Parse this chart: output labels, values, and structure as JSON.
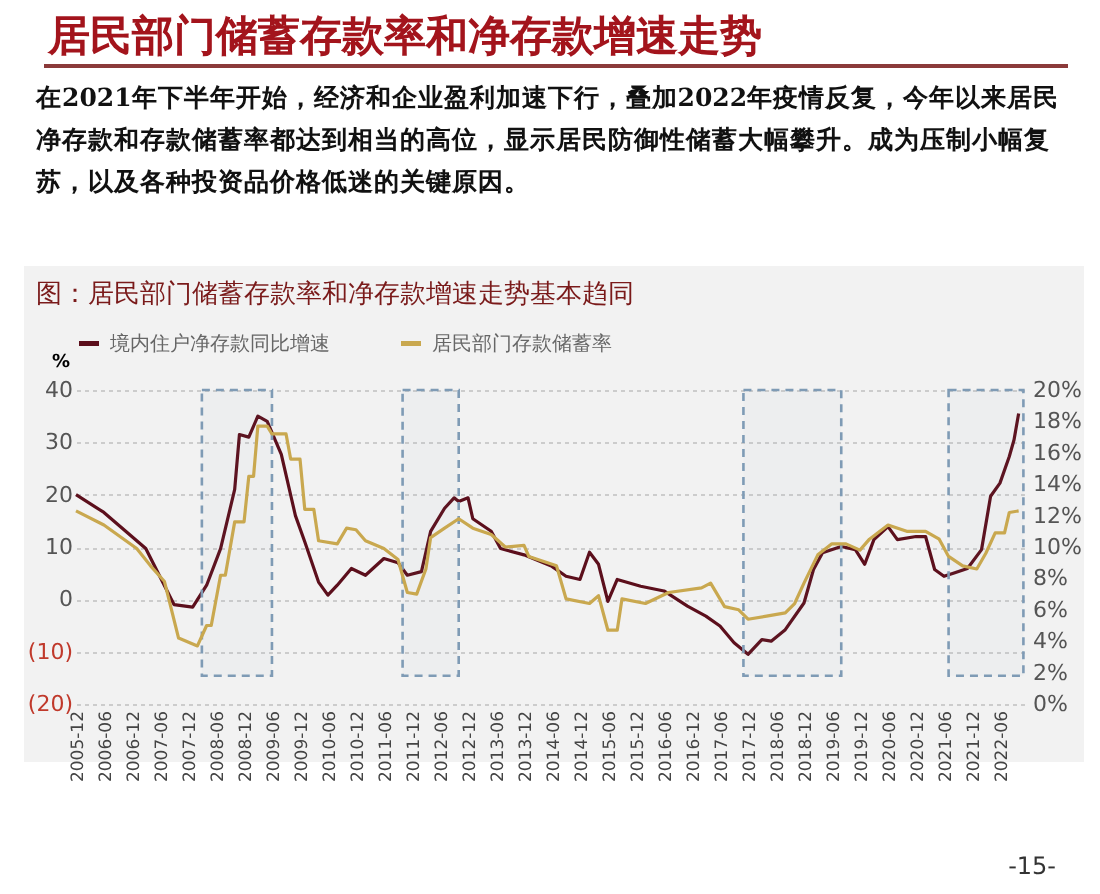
{
  "chart_data": {
    "type": "line",
    "title": "居民部门储蓄存款率和净存款增速走势",
    "subtitle": "在2021年下半年开始，经济和企业盈利加速下行，叠加2022年疫情反复，今年以来居民净存款和存款储蓄率都达到相当的高位，显示居民防御性储蓄大幅攀升。成为压制小幅复苏，以及各种投资品价格低迷的关键原因。",
    "annotations": [
      "图：居民部门储蓄存款率和净存款增速走势基本趋同",
      "-15-"
    ],
    "ylabel": "%",
    "xlim": [
      "2005-12",
      "2022-12"
    ],
    "xticks": [
      "2005-12",
      "2006-06",
      "2006-12",
      "2007-06",
      "2007-12",
      "2008-06",
      "2008-12",
      "2009-06",
      "2009-12",
      "2010-06",
      "2010-12",
      "2011-06",
      "2011-12",
      "2012-06",
      "2012-12",
      "2013-06",
      "2013-12",
      "2014-06",
      "2014-12",
      "2015-06",
      "2015-12",
      "2016-06",
      "2016-12",
      "2017-06",
      "2017-12",
      "2018-06",
      "2018-12",
      "2019-06",
      "2019-12",
      "2020-06",
      "2020-12",
      "2021-06",
      "2021-12",
      "2022-06"
    ],
    "ylim": [
      -20,
      40
    ],
    "yticks": [
      {
        "value": -20,
        "label": "(20)"
      },
      {
        "value": -10,
        "label": "(10)"
      },
      0,
      10,
      20,
      30,
      40
    ],
    "y2lim": [
      0,
      20
    ],
    "y2ticks": [
      {
        "value": 0,
        "label": "0%"
      },
      {
        "value": 2,
        "label": "2%"
      },
      {
        "value": 4,
        "label": "4%"
      },
      {
        "value": 6,
        "label": "6%"
      },
      {
        "value": 8,
        "label": "8%"
      },
      {
        "value": 10,
        "label": "10%"
      },
      {
        "value": 12,
        "label": "12%"
      },
      {
        "value": 14,
        "label": "14%"
      },
      {
        "value": 16,
        "label": "16%"
      },
      {
        "value": 18,
        "label": "18%"
      },
      {
        "value": 20,
        "label": "20%"
      }
    ],
    "grid": "y",
    "legend": "top",
    "bands": [
      {
        "axis": "x",
        "from": "2008-03",
        "to": "2009-06",
        "label": null,
        "color": "#7f9bb5"
      },
      {
        "axis": "x",
        "from": "2011-10",
        "to": "2012-10",
        "label": null,
        "color": "#7f9bb5"
      },
      {
        "axis": "x",
        "from": "2017-11",
        "to": "2019-08",
        "label": null,
        "color": "#7f9bb5"
      },
      {
        "axis": "x",
        "from": "2021-07",
        "to": "2022-11",
        "label": null,
        "color": "#7f9bb5"
      }
    ],
    "series": [
      {
        "name": "境内住户净存款同比增速",
        "color": "#5c0f1c",
        "x": [
          "2005-12",
          "2006-06",
          "2007-03",
          "2007-09",
          "2008-01",
          "2008-04",
          "2008-07",
          "2008-10",
          "2008-11",
          "2009-01",
          "2009-03",
          "2009-05",
          "2009-08",
          "2009-11",
          "2010-01",
          "2010-04",
          "2010-06",
          "2010-08",
          "2010-11",
          "2011-02",
          "2011-06",
          "2011-09",
          "2011-11",
          "2012-02",
          "2012-04",
          "2012-07",
          "2012-09",
          "2012-10",
          "2012-12",
          "2013-01",
          "2013-05",
          "2013-07",
          "2013-12",
          "2014-06",
          "2014-09",
          "2014-12",
          "2015-02",
          "2015-04",
          "2015-06",
          "2015-08",
          "2016-01",
          "2016-06",
          "2016-11",
          "2017-03",
          "2017-06",
          "2017-09",
          "2017-12",
          "2018-03",
          "2018-05",
          "2018-08",
          "2018-12",
          "2019-02",
          "2019-04",
          "2019-08",
          "2019-11",
          "2020-01",
          "2020-03",
          "2020-06",
          "2020-08",
          "2020-12",
          "2021-02",
          "2021-04",
          "2021-06",
          "2021-08",
          "2021-11",
          "2022-02",
          "2022-04",
          "2022-06",
          "2022-08",
          "2022-09",
          "2022-10"
        ],
        "values": [
          20,
          16.6,
          9.7,
          -1,
          -1.5,
          2.7,
          9.7,
          21,
          31.5,
          31,
          35,
          34,
          27.7,
          16,
          11,
          3.3,
          0.8,
          2.7,
          5.9,
          4.6,
          7.8,
          7,
          4.6,
          5.3,
          13,
          17.4,
          19.4,
          18.7,
          19.4,
          15.4,
          13,
          9.7,
          8.5,
          6.3,
          4.4,
          3.8,
          9,
          6.7,
          -0.4,
          3.8,
          2.5,
          1.6,
          -1.3,
          -3.2,
          -5.1,
          -8.3,
          -10.5,
          -7.7,
          -8,
          -5.8,
          -0.7,
          5.7,
          8.9,
          10.1,
          9.5,
          6.7,
          11.4,
          13.9,
          11.4,
          12,
          12,
          5.7,
          4.4,
          5,
          5.9,
          9.5,
          19.7,
          22.2,
          27.3,
          30.5,
          35.5
        ]
      },
      {
        "name": "居民部门存款储蓄率",
        "color": "#c9a84f",
        "axis": "y2",
        "x": [
          "2005-12",
          "2006-06",
          "2007-01",
          "2007-04",
          "2007-07",
          "2007-10",
          "2008-02",
          "2008-04",
          "2008-05",
          "2008-07",
          "2008-08",
          "2008-10",
          "2008-12",
          "2009-01",
          "2009-02",
          "2009-03",
          "2009-05",
          "2009-06",
          "2009-09",
          "2009-10",
          "2009-12",
          "2010-01",
          "2010-03",
          "2010-04",
          "2010-08",
          "2010-10",
          "2010-12",
          "2011-02",
          "2011-06",
          "2011-09",
          "2011-11",
          "2012-01",
          "2012-03",
          "2012-04",
          "2012-07",
          "2012-10",
          "2013-01",
          "2013-05",
          "2013-08",
          "2013-12",
          "2014-01",
          "2014-07",
          "2014-09",
          "2015-02",
          "2015-04",
          "2015-06",
          "2015-08",
          "2015-09",
          "2016-02",
          "2016-07",
          "2017-02",
          "2017-04",
          "2017-07",
          "2017-10",
          "2017-12",
          "2018-04",
          "2018-08",
          "2018-10",
          "2018-12",
          "2019-03",
          "2019-06",
          "2019-09",
          "2019-12",
          "2020-02",
          "2020-06",
          "2020-10",
          "2021-02",
          "2021-05",
          "2021-07",
          "2021-10",
          "2022-01",
          "2022-03",
          "2022-05",
          "2022-07",
          "2022-08",
          "2022-10"
        ],
        "values": [
          12.3,
          11.4,
          9.9,
          8.8,
          7.8,
          4.2,
          3.7,
          5,
          5,
          8.2,
          8.2,
          11.6,
          11.6,
          14.5,
          14.5,
          17.7,
          17.7,
          17.2,
          17.2,
          15.6,
          15.6,
          12.4,
          12.4,
          10.4,
          10.2,
          11.2,
          11.1,
          10.4,
          9.9,
          9.2,
          7.1,
          7,
          8.6,
          10.6,
          11.2,
          11.8,
          11.2,
          10.8,
          10,
          10.1,
          9.4,
          8.8,
          6.7,
          6.4,
          6.9,
          4.7,
          4.7,
          6.7,
          6.4,
          7.1,
          7.4,
          7.7,
          6.2,
          6,
          5.4,
          5.6,
          5.8,
          6.4,
          7.7,
          9.5,
          10.2,
          10.2,
          9.8,
          10.5,
          11.4,
          11,
          11,
          10.5,
          9.4,
          8.8,
          8.6,
          9.6,
          10.9,
          10.9,
          12.2,
          12.3
        ]
      }
    ]
  }
}
